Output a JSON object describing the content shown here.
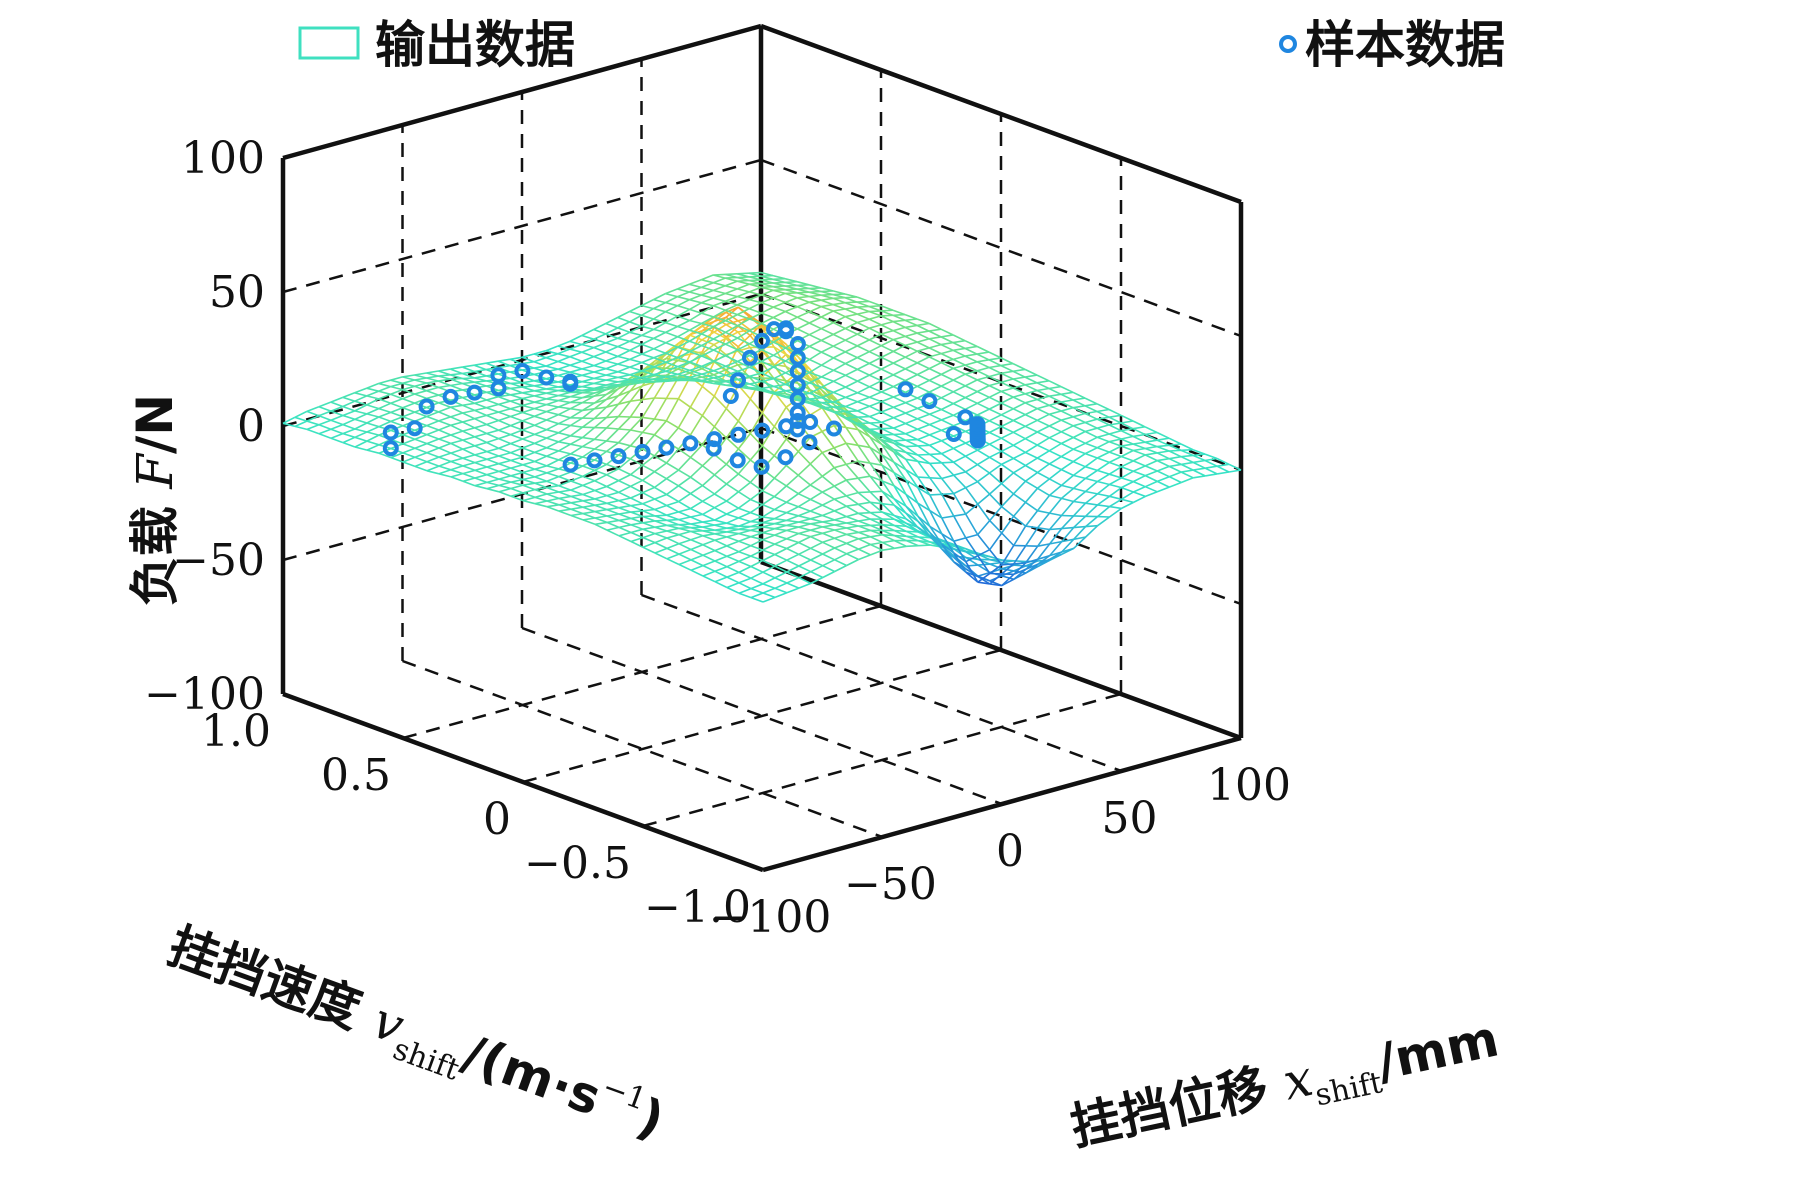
{
  "chart_data": {
    "type": "surface3d",
    "zlabel_text": "负载 F/N",
    "zlabel": {
      "prefix": "负载 ",
      "var": "F",
      "suffix": "/N"
    },
    "ylabel_text": "挂挡速度 vshift/(m·s−1)",
    "ylabel": {
      "prefix": "挂挡速度 ",
      "var": "v",
      "sub": "shift",
      "suffix": "/(m·s",
      "sup": "−1",
      "close": ")"
    },
    "xlabel_text": "挂挡位移 xshift/mm",
    "xlabel": {
      "prefix": "挂挡位移 ",
      "var": "x",
      "sub": "shift",
      "suffix": "/mm"
    },
    "xlim": [
      -100,
      100
    ],
    "ylim": [
      -1.0,
      1.0
    ],
    "zlim": [
      -100,
      100
    ],
    "x_ticks": [
      {
        "v": -100,
        "label": "−100"
      },
      {
        "v": -50,
        "label": "−50"
      },
      {
        "v": 0,
        "label": "0"
      },
      {
        "v": 50,
        "label": "50"
      },
      {
        "v": 100,
        "label": "100"
      }
    ],
    "y_ticks": [
      {
        "v": -1.0,
        "label": "−1.0"
      },
      {
        "v": -0.5,
        "label": "−0.5"
      },
      {
        "v": 0,
        "label": "0"
      },
      {
        "v": 0.5,
        "label": "0.5"
      },
      {
        "v": 1.0,
        "label": "1.0"
      }
    ],
    "z_ticks": [
      {
        "v": -100,
        "label": "−100"
      },
      {
        "v": -50,
        "label": "−50"
      },
      {
        "v": 0,
        "label": "0"
      },
      {
        "v": 50,
        "label": "50"
      },
      {
        "v": 100,
        "label": "100"
      }
    ],
    "grid": true,
    "grid_style": "dashed",
    "legend_position": "top",
    "series": [
      {
        "name": "输出数据",
        "kind": "surface",
        "colormap": [
          "#1e5bd8",
          "#2aa6d8",
          "#37e3c6",
          "#8be06a",
          "#f0d640",
          "#f5a534"
        ],
        "x_grid": [
          -100,
          -90,
          -80,
          -70,
          -60,
          -50,
          -40,
          -30,
          -20,
          -10,
          0,
          10,
          20,
          30,
          40,
          50,
          60,
          70,
          80,
          90,
          100
        ],
        "y_grid": [
          -1.0,
          -0.9,
          -0.8,
          -0.7,
          -0.6,
          -0.5,
          -0.4,
          -0.3,
          -0.2,
          -0.1,
          0,
          0.1,
          0.2,
          0.3,
          0.4,
          0.5,
          0.6,
          0.7,
          0.8,
          0.9,
          1.0
        ],
        "z": [
          [
            0,
            1,
            2,
            4,
            6,
            7,
            6,
            4,
            0,
            -4,
            -9,
            -12,
            -14,
            -12,
            -6,
            -2,
            0,
            1,
            2,
            1,
            0
          ],
          [
            0,
            1,
            3,
            5,
            7,
            8,
            7,
            4,
            1,
            -4,
            -12,
            -18,
            -22,
            -18,
            -10,
            -4,
            0,
            2,
            3,
            2,
            1
          ],
          [
            1,
            2,
            4,
            6,
            8,
            8,
            7,
            5,
            2,
            -4,
            -14,
            -24,
            -30,
            -24,
            -14,
            -6,
            -1,
            2,
            4,
            3,
            1
          ],
          [
            2,
            3,
            4,
            6,
            7,
            7,
            6,
            6,
            4,
            -1,
            -10,
            -22,
            -32,
            -28,
            -16,
            -7,
            -2,
            2,
            4,
            3,
            2
          ],
          [
            3,
            4,
            5,
            5,
            5,
            5,
            6,
            8,
            8,
            6,
            -2,
            -12,
            -20,
            -20,
            -12,
            -5,
            -1,
            2,
            4,
            4,
            3
          ],
          [
            4,
            5,
            5,
            3,
            2,
            3,
            6,
            10,
            14,
            14,
            10,
            2,
            -6,
            -8,
            -6,
            -2,
            0,
            3,
            5,
            5,
            4
          ],
          [
            5,
            5,
            4,
            2,
            1,
            3,
            7,
            14,
            22,
            24,
            20,
            12,
            4,
            0,
            -2,
            0,
            2,
            4,
            6,
            6,
            5
          ],
          [
            6,
            5,
            4,
            2,
            2,
            5,
            10,
            18,
            30,
            34,
            28,
            18,
            8,
            3,
            1,
            2,
            3,
            5,
            7,
            7,
            6
          ],
          [
            6,
            5,
            4,
            3,
            4,
            8,
            14,
            24,
            38,
            44,
            36,
            22,
            10,
            4,
            2,
            3,
            4,
            6,
            8,
            8,
            7
          ],
          [
            6,
            5,
            4,
            4,
            6,
            10,
            18,
            30,
            46,
            52,
            42,
            26,
            12,
            5,
            3,
            4,
            5,
            7,
            9,
            9,
            8
          ],
          [
            5,
            5,
            4,
            5,
            7,
            12,
            20,
            34,
            50,
            55,
            45,
            28,
            13,
            6,
            4,
            5,
            6,
            8,
            10,
            10,
            9
          ],
          [
            5,
            5,
            4,
            5,
            7,
            11,
            18,
            30,
            44,
            48,
            40,
            26,
            12,
            6,
            4,
            5,
            7,
            9,
            11,
            11,
            10
          ],
          [
            4,
            4,
            4,
            4,
            6,
            9,
            15,
            24,
            34,
            38,
            32,
            22,
            10,
            5,
            4,
            6,
            8,
            10,
            12,
            12,
            11
          ],
          [
            4,
            4,
            4,
            4,
            5,
            7,
            11,
            17,
            24,
            26,
            22,
            15,
            8,
            5,
            4,
            6,
            9,
            11,
            13,
            13,
            12
          ],
          [
            3,
            4,
            4,
            4,
            5,
            6,
            8,
            11,
            15,
            16,
            14,
            10,
            6,
            5,
            5,
            7,
            10,
            12,
            14,
            14,
            12
          ],
          [
            3,
            4,
            5,
            5,
            5,
            6,
            7,
            8,
            9,
            9,
            8,
            6,
            5,
            5,
            6,
            8,
            11,
            13,
            15,
            14,
            12
          ],
          [
            3,
            4,
            5,
            6,
            6,
            6,
            6,
            6,
            6,
            5,
            5,
            4,
            4,
            5,
            7,
            9,
            12,
            14,
            15,
            14,
            12
          ],
          [
            2,
            4,
            5,
            6,
            7,
            6,
            6,
            5,
            4,
            3,
            3,
            3,
            4,
            5,
            7,
            10,
            12,
            14,
            15,
            13,
            11
          ],
          [
            2,
            3,
            5,
            6,
            7,
            7,
            6,
            5,
            3,
            2,
            2,
            2,
            3,
            5,
            7,
            9,
            12,
            13,
            14,
            12,
            10
          ],
          [
            2,
            3,
            4,
            6,
            7,
            7,
            6,
            4,
            3,
            2,
            1,
            2,
            3,
            4,
            6,
            9,
            11,
            12,
            13,
            11,
            9
          ],
          [
            1,
            3,
            4,
            5,
            6,
            6,
            5,
            4,
            3,
            2,
            1,
            1,
            2,
            4,
            6,
            8,
            10,
            11,
            12,
            10,
            8
          ]
        ]
      },
      {
        "name": "样本数据",
        "kind": "scatter",
        "color": "#1f86e0",
        "points": [
          {
            "x": -80,
            "y": 0.75,
            "z": -5
          },
          {
            "x": -75,
            "y": 0.8,
            "z": -2
          },
          {
            "x": -70,
            "y": 0.75,
            "z": 0
          },
          {
            "x": -60,
            "y": 0.8,
            "z": 4
          },
          {
            "x": -55,
            "y": 0.75,
            "z": 8
          },
          {
            "x": -50,
            "y": 0.7,
            "z": 10
          },
          {
            "x": -45,
            "y": 0.65,
            "z": 12
          },
          {
            "x": -40,
            "y": 0.7,
            "z": 14
          },
          {
            "x": -35,
            "y": 0.65,
            "z": 16
          },
          {
            "x": -30,
            "y": 0.6,
            "z": 14
          },
          {
            "x": -25,
            "y": 0.55,
            "z": 12
          },
          {
            "x": -20,
            "y": 0.6,
            "z": 10
          },
          {
            "x": -60,
            "y": 0.2,
            "z": 2
          },
          {
            "x": -55,
            "y": 0.15,
            "z": 4
          },
          {
            "x": -50,
            "y": 0.1,
            "z": 6
          },
          {
            "x": -45,
            "y": 0.05,
            "z": 8
          },
          {
            "x": -40,
            "y": 0.0,
            "z": 10
          },
          {
            "x": -35,
            "y": -0.05,
            "z": 12
          },
          {
            "x": -30,
            "y": -0.1,
            "z": 14
          },
          {
            "x": -25,
            "y": -0.15,
            "z": 16
          },
          {
            "x": -20,
            "y": -0.2,
            "z": 18
          },
          {
            "x": -15,
            "y": -0.25,
            "z": 20
          },
          {
            "x": -10,
            "y": -0.3,
            "z": 22
          },
          {
            "x": -5,
            "y": -0.35,
            "z": 20
          },
          {
            "x": 0,
            "y": -0.1,
            "z": 48
          },
          {
            "x": 0,
            "y": -0.05,
            "z": 46
          },
          {
            "x": 0,
            "y": 0.0,
            "z": 40
          },
          {
            "x": 0,
            "y": 0.05,
            "z": 32
          },
          {
            "x": 0,
            "y": 0.1,
            "z": 22
          },
          {
            "x": 2,
            "y": 0.15,
            "z": 14
          },
          {
            "x": 5,
            "y": -0.05,
            "z": 44
          },
          {
            "x": 10,
            "y": -0.05,
            "z": 38
          },
          {
            "x": 15,
            "y": 0.0,
            "z": 30
          },
          {
            "x": 20,
            "y": 0.05,
            "z": 22
          },
          {
            "x": 25,
            "y": 0.1,
            "z": 14
          },
          {
            "x": 30,
            "y": 0.15,
            "z": 6
          },
          {
            "x": 35,
            "y": 0.2,
            "z": -2
          },
          {
            "x": 40,
            "y": 0.25,
            "z": -8
          },
          {
            "x": 45,
            "y": 0.3,
            "z": -14
          },
          {
            "x": 20,
            "y": -0.6,
            "z": 20
          },
          {
            "x": 25,
            "y": -0.65,
            "z": 18
          },
          {
            "x": 30,
            "y": -0.6,
            "z": 16
          },
          {
            "x": 35,
            "y": -0.55,
            "z": 14
          },
          {
            "x": 40,
            "y": -0.5,
            "z": 12
          },
          {
            "x": 45,
            "y": -0.45,
            "z": 10
          },
          {
            "x": 50,
            "y": -0.4,
            "z": 8
          },
          {
            "x": 55,
            "y": -0.35,
            "z": 6
          },
          {
            "x": 60,
            "y": -0.3,
            "z": 4
          },
          {
            "x": 65,
            "y": -0.2,
            "z": 2
          },
          {
            "x": 60,
            "y": -0.1,
            "z": 6
          },
          {
            "x": 55,
            "y": -0.05,
            "z": 10
          },
          {
            "x": 50,
            "y": 0.3,
            "z": -20
          },
          {
            "x": 45,
            "y": 0.35,
            "z": -26
          },
          {
            "x": 40,
            "y": 0.4,
            "z": -30
          },
          {
            "x": 35,
            "y": 0.45,
            "z": -28
          },
          {
            "x": 30,
            "y": 0.5,
            "z": -24
          }
        ]
      }
    ]
  }
}
